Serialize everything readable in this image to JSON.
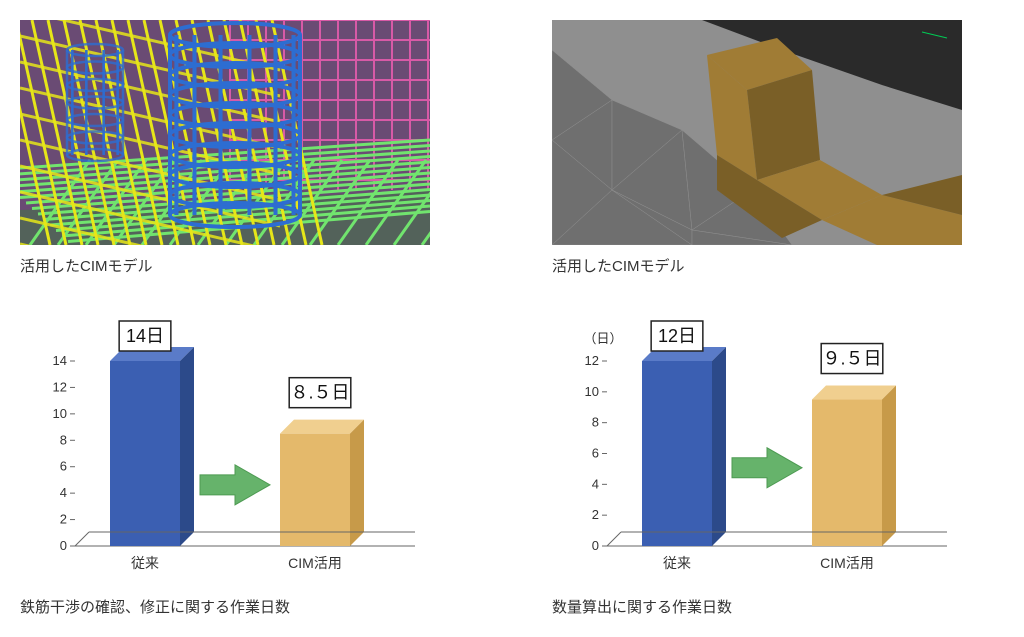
{
  "left_image": {
    "caption": "活用したCIMモデル",
    "bg": "#6a4b74",
    "rebar_yellow": "#e6e619",
    "rebar_green": "#71e46e",
    "rebar_blue": "#2d6dd1",
    "grid_magenta": "#d85aa7",
    "ground": "#3b7a3f"
  },
  "right_image": {
    "caption": "活用したCIMモデル",
    "ground": "#8f8f8f",
    "ground_dark": "#6f6f6f",
    "earth": "#a07c35",
    "earth_dark": "#7a5f27",
    "pavement": "#2a2a2a"
  },
  "left_chart": {
    "caption": "鉄筋干渉の確認、修正に関する作業日数",
    "type": "bar",
    "yticks": [
      0,
      2,
      4,
      6,
      8,
      10,
      12,
      14
    ],
    "categories": [
      "従来",
      "CIM活用"
    ],
    "values": [
      14,
      8.5
    ],
    "value_labels": [
      "14日",
      "８.５日"
    ],
    "bar_colors": [
      "#3b5fb2",
      "#e4b96b"
    ],
    "bar_sides": [
      "#2c4a8a",
      "#c79a49"
    ],
    "bar_tops": [
      "#5a7bc8",
      "#f0cf8f"
    ],
    "arrow": "#66b36b",
    "axis": "#666666",
    "label_box_border": "#222222",
    "label_box_bg": "#ffffff",
    "label_fontsize": 18,
    "tick_fontsize": 13,
    "chart_bg": "#ffffff"
  },
  "right_chart": {
    "caption": "数量算出に関する作業日数",
    "type": "bar",
    "y_unit": "（日）",
    "yticks": [
      0,
      2,
      4,
      6,
      8,
      10,
      12
    ],
    "categories": [
      "従来",
      "CIM活用"
    ],
    "values": [
      12,
      9.5
    ],
    "value_labels": [
      "12日",
      "９.５日"
    ],
    "bar_colors": [
      "#3b5fb2",
      "#e4b96b"
    ],
    "bar_sides": [
      "#2c4a8a",
      "#c79a49"
    ],
    "bar_tops": [
      "#5a7bc8",
      "#f0cf8f"
    ],
    "arrow": "#66b36b",
    "axis": "#666666",
    "label_box_border": "#222222",
    "label_box_bg": "#ffffff",
    "label_fontsize": 18,
    "tick_fontsize": 13,
    "chart_bg": "#ffffff"
  }
}
